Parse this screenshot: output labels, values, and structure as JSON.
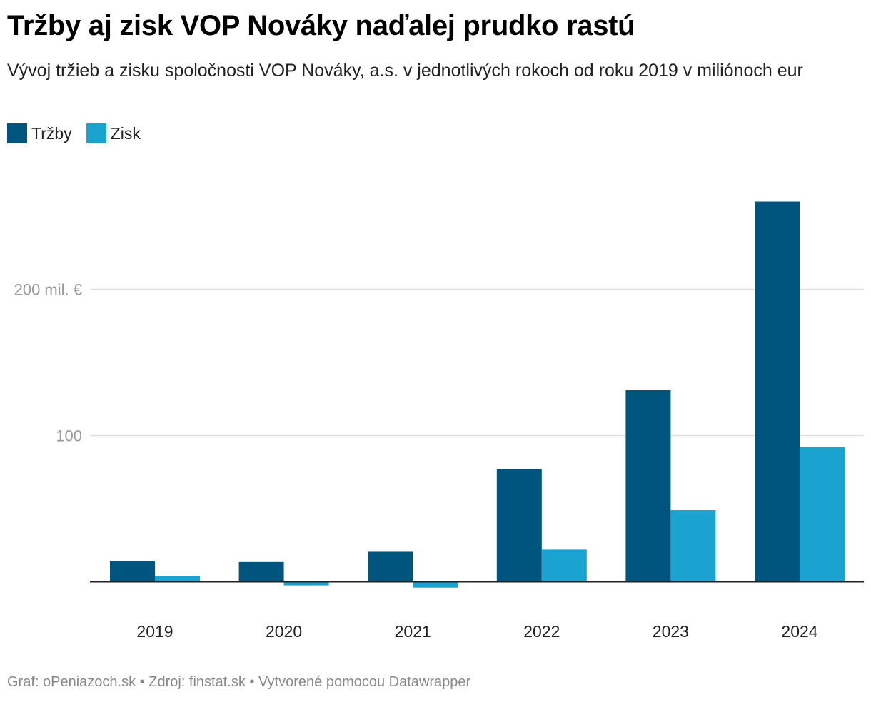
{
  "title": "Tržby aj zisk VOP Nováky naďalej prudko rastú",
  "subtitle": "Vývoj tržieb a zisku spoločnosti VOP Nováky, a.s. v jednotlivých rokoch od roku 2019 v miliónoch eur",
  "legend": [
    {
      "label": "Tržby",
      "color": "#00557f"
    },
    {
      "label": "Zisk",
      "color": "#1aa2d1"
    }
  ],
  "footer": {
    "credit": "Graf: oPeniazoch.sk",
    "separator": "•",
    "source": "Zdroj: finstat.sk",
    "tool": "Vytvorené pomocou Datawrapper"
  },
  "chart_data": {
    "type": "bar",
    "title": "Tržby aj zisk VOP Nováky naďalej prudko rastú",
    "xlabel": "",
    "ylabel": "",
    "categories": [
      "2019",
      "2020",
      "2021",
      "2022",
      "2023",
      "2024"
    ],
    "series": [
      {
        "name": "Tržby",
        "color": "#00557f",
        "values": [
          14,
          13.5,
          20.5,
          77,
          131,
          260
        ]
      },
      {
        "name": "Zisk",
        "color": "#1aa2d1",
        "values": [
          4,
          -2.5,
          -4,
          22,
          49,
          92
        ]
      }
    ],
    "yticks": [
      {
        "value": 100,
        "label": "100"
      },
      {
        "value": 200,
        "label": "200 mil. €"
      }
    ],
    "ylim": [
      -10,
      270
    ],
    "grid": true,
    "legend_position": "top-left"
  }
}
